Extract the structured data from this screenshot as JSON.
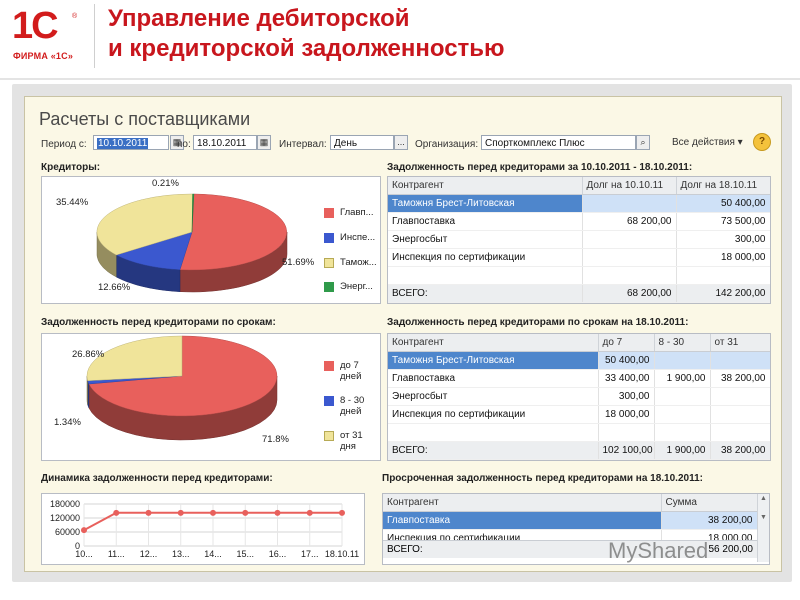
{
  "header": {
    "logo_mark": "1С",
    "logo_sub": "ФИРМА «1С»",
    "logo_reg": "®",
    "title": "Управление дебиторской\nи кредиторской задолженностью"
  },
  "window": {
    "title": "Расчеты с поставщиками",
    "toolbar": {
      "period_from_label": "Период с:",
      "period_from": "10.10.2011",
      "period_to_label": "по:",
      "period_to": "18.10.2011",
      "interval_label": "Интервал:",
      "interval": "День",
      "org_label": "Организация:",
      "org": "Спорткомплекс Плюс",
      "ellipsis": "...",
      "all_actions": "Все действия ▾",
      "help": "?"
    }
  },
  "creditors": {
    "title": "Кредиторы:",
    "legend": [
      {
        "label": "Главп...",
        "color": "#e8605c"
      },
      {
        "label": "Инспе...",
        "color": "#3b58cf"
      },
      {
        "label": "Тамож...",
        "color": "#f0e49a"
      },
      {
        "label": "Энерг...",
        "color": "#2f9a4a"
      }
    ],
    "pct_labels": [
      "0.21%",
      "35.44%",
      "51.69%",
      "12.66%"
    ]
  },
  "debt_table": {
    "title": "Задолженность перед кредиторами за 10.10.2011 - 18.10.2011:",
    "columns": [
      "Контрагент",
      "Долг на 10.10.11",
      "Долг на 18.10.11"
    ],
    "rows": [
      [
        "Таможня Брест-Литовская",
        "",
        "50 400,00"
      ],
      [
        "Главпоставка",
        "68 200,00",
        "73 500,00"
      ],
      [
        "Энергосбыт",
        "",
        "300,00"
      ],
      [
        "Инспекция по сертификации",
        "",
        "18 000,00"
      ]
    ],
    "total": [
      "ВСЕГО:",
      "68 200,00",
      "142 200,00"
    ]
  },
  "terms": {
    "title": "Задолженность перед кредиторами по срокам:",
    "legend": [
      {
        "label": "до 7\nдней",
        "color": "#e8605c"
      },
      {
        "label": "8 - 30\nдней",
        "color": "#3b58cf"
      },
      {
        "label": "от 31\nдня",
        "color": "#f0e49a"
      }
    ],
    "pct_labels": [
      "26.86%",
      "1.34%",
      "71.8%"
    ]
  },
  "terms_table": {
    "title": "Задолженность перед кредиторами по срокам на 18.10.2011:",
    "columns": [
      "Контрагент",
      "до 7",
      "8 - 30",
      "от 31"
    ],
    "rows": [
      [
        "Таможня Брест-Литовская",
        "50 400,00",
        "",
        ""
      ],
      [
        "Главпоставка",
        "33 400,00",
        "1 900,00",
        "38 200,00"
      ],
      [
        "Энергосбыт",
        "300,00",
        "",
        ""
      ],
      [
        "Инспекция по сертификации",
        "18 000,00",
        "",
        ""
      ]
    ],
    "total": [
      "ВСЕГО:",
      "102 100,00",
      "1 900,00",
      "38 200,00"
    ]
  },
  "dynamics": {
    "title": "Динамика задолженности перед кредиторами:"
  },
  "overdue_table": {
    "title": "Просроченная задолженность перед кредиторами на 18.10.2011:",
    "columns": [
      "Контрагент",
      "Сумма"
    ],
    "rows": [
      [
        "Главпоставка",
        "38 200,00"
      ],
      [
        "Инспекция по сертификации",
        "18 000,00"
      ]
    ],
    "total": [
      "ВСЕГО:",
      "56 200,00"
    ]
  },
  "watermark": "MyShared",
  "chart_data": [
    {
      "type": "pie",
      "categories": [
        "Главп...",
        "Инспе...",
        "Тамож...",
        "Энерг..."
      ],
      "values": [
        51.69,
        12.66,
        35.44,
        0.21
      ],
      "colors": [
        "#e8605c",
        "#3b58cf",
        "#f0e49a",
        "#2f9a4a"
      ]
    },
    {
      "type": "pie",
      "categories": [
        "до 7 дней",
        "8 - 30 дней",
        "от 31 дня"
      ],
      "values": [
        71.8,
        1.34,
        26.86
      ],
      "colors": [
        "#e8605c",
        "#3b58cf",
        "#f0e49a"
      ]
    },
    {
      "type": "line",
      "categories": [
        "10...",
        "11...",
        "12...",
        "13...",
        "14...",
        "15...",
        "16...",
        "17...",
        "18.10.11"
      ],
      "values": [
        68200,
        142200,
        142200,
        142200,
        142200,
        142200,
        142200,
        142200,
        142200
      ],
      "y_ticks": [
        "180000",
        "120000",
        "60000",
        "0"
      ],
      "ylim": [
        0,
        180000
      ],
      "color": "#e8605c",
      "grid": true
    }
  ]
}
